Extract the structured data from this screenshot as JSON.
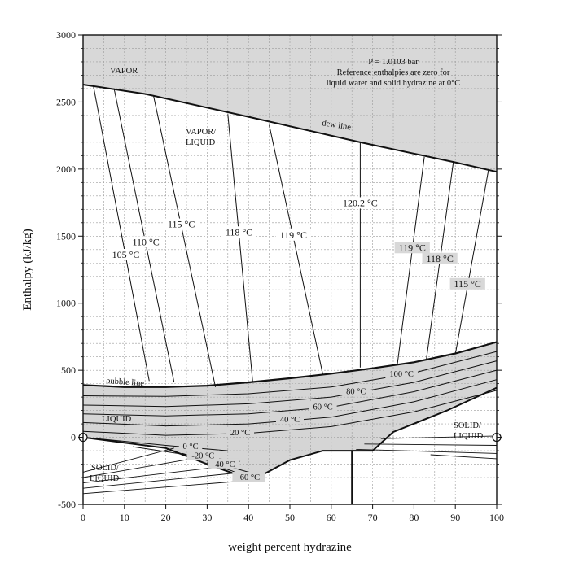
{
  "chart_data": {
    "type": "line",
    "title": "",
    "xlabel": "weight percent hydrazine",
    "ylabel": "Enthalpy (kJ/kg)",
    "xlim": [
      0,
      100
    ],
    "ylim": [
      -500,
      3000
    ],
    "x_ticks": [
      0,
      10,
      20,
      30,
      40,
      50,
      60,
      70,
      80,
      90,
      100
    ],
    "y_ticks": [
      -500,
      0,
      500,
      1000,
      1500,
      2000,
      2500,
      3000
    ],
    "x_tick_labels": [
      "0",
      "10",
      "20",
      "30",
      "40",
      "50",
      "60",
      "70",
      "80",
      "90",
      "100"
    ],
    "y_tick_labels": [
      "-500",
      "0",
      "500",
      "1000",
      "1500",
      "2000",
      "2500",
      "3000"
    ],
    "grid": true,
    "annotations": {
      "pressure": "P = 1.0103 bar",
      "reference_1": "Reference enthalpies are zero for",
      "reference_2": "liquid water and solid hydrazine at 0°C",
      "vapor": "VAPOR",
      "vapor_liquid_1": "VAPOR/",
      "vapor_liquid_2": "LIQUID",
      "dew_line": "dew line",
      "bubble_line": "bubble line",
      "liquid": "LIQUID",
      "solid_liquid_left_1": "SOLID/",
      "solid_liquid_left_2": "LIQUID",
      "solid_liquid_right_1": "SOLID/",
      "solid_liquid_right_2": "LIQUID"
    },
    "dew_line": {
      "x": [
        0,
        15,
        40,
        67,
        90,
        100
      ],
      "y": [
        2630,
        2560,
        2390,
        2200,
        2050,
        1980
      ]
    },
    "bubble_line": {
      "x": [
        0,
        10,
        20,
        30,
        40,
        50,
        60,
        70,
        80,
        90,
        100
      ],
      "y": [
        390,
        375,
        375,
        385,
        410,
        440,
        475,
        515,
        560,
        625,
        710
      ]
    },
    "solid_liquid_boundary_left": {
      "x": [
        0,
        10,
        20,
        30,
        41
      ],
      "y": [
        0,
        -40,
        -80,
        -200,
        -320
      ]
    },
    "solid_liquid_boundary_right": {
      "x": [
        41,
        50,
        58,
        70,
        75,
        88,
        100
      ],
      "y": [
        -320,
        -170,
        -100,
        -100,
        40,
        200,
        370
      ]
    },
    "eutectic_vertical": {
      "x": [
        65,
        65
      ],
      "y": [
        -100,
        -500
      ]
    },
    "tie_lines": [
      {
        "label": "105 °C",
        "x": [
          2.5,
          16
        ],
        "y": [
          2620,
          420
        ]
      },
      {
        "label": "110 °C",
        "x": [
          7.5,
          22
        ],
        "y": [
          2600,
          410
        ]
      },
      {
        "label": "115 °C",
        "x": [
          17,
          32
        ],
        "y": [
          2550,
          375
        ]
      },
      {
        "label": "118 °C",
        "x": [
          35,
          41
        ],
        "y": [
          2410,
          415
        ]
      },
      {
        "label": "119 °C",
        "x": [
          45,
          58
        ],
        "y": [
          2330,
          465
        ]
      },
      {
        "label": "120.2 °C",
        "x": [
          67,
          67
        ],
        "y": [
          2200,
          520
        ]
      },
      {
        "label": "119 °C",
        "x": [
          82.5,
          76
        ],
        "y": [
          2090,
          550
        ]
      },
      {
        "label": "118 °C",
        "x": [
          89.5,
          83
        ],
        "y": [
          2050,
          580
        ]
      },
      {
        "label": "115 °C",
        "x": [
          98,
          90
        ],
        "y": [
          1990,
          620
        ]
      }
    ],
    "liquid_isotherms": [
      {
        "label": "100 °C",
        "x": [
          0,
          20,
          40,
          60,
          80,
          100
        ],
        "y": [
          310,
          305,
          325,
          375,
          480,
          640
        ]
      },
      {
        "label": "80 °C",
        "x": [
          0,
          20,
          40,
          60,
          80,
          100
        ],
        "y": [
          240,
          230,
          250,
          300,
          410,
          570
        ]
      },
      {
        "label": "60 °C",
        "x": [
          0,
          20,
          40,
          60,
          80,
          100
        ],
        "y": [
          175,
          160,
          175,
          225,
          340,
          500
        ]
      },
      {
        "label": "40 °C",
        "x": [
          0,
          20,
          40,
          60,
          80,
          100
        ],
        "y": [
          110,
          85,
          100,
          150,
          265,
          430
        ]
      },
      {
        "label": "20 °C",
        "x": [
          0,
          20,
          40,
          60,
          80,
          100
        ],
        "y": [
          45,
          15,
          30,
          80,
          190,
          350
        ]
      },
      {
        "label": "0 °C",
        "x": [
          0,
          20,
          35
        ],
        "y": [
          0,
          -60,
          -100
        ]
      },
      {
        "label": "-20 °C",
        "x": [
          12,
          25,
          38
        ],
        "y": [
          -70,
          -130,
          -180
        ]
      },
      {
        "label": "-40 °C",
        "x": [
          24,
          32,
          40
        ],
        "y": [
          -120,
          -190,
          -260
        ]
      },
      {
        "label": "-60 °C",
        "x": [
          30,
          36,
          41
        ],
        "y": [
          -190,
          -250,
          -320
        ]
      }
    ],
    "solid_liquid_fan_left": [
      {
        "x": [
          0,
          22
        ],
        "y": [
          -260,
          -80
        ]
      },
      {
        "x": [
          0,
          30
        ],
        "y": [
          -300,
          -140
        ]
      },
      {
        "x": [
          0,
          36
        ],
        "y": [
          -340,
          -210
        ]
      },
      {
        "x": [
          0,
          39
        ],
        "y": [
          -380,
          -260
        ]
      },
      {
        "x": [
          0,
          41
        ],
        "y": [
          -420,
          -320
        ]
      }
    ],
    "solid_liquid_fan_right": [
      {
        "x": [
          72,
          100
        ],
        "y": [
          -10,
          10
        ]
      },
      {
        "x": [
          68,
          100
        ],
        "y": [
          -50,
          -60
        ]
      },
      {
        "x": [
          66,
          100
        ],
        "y": [
          -90,
          -120
        ]
      },
      {
        "x": [
          84,
          100
        ],
        "y": [
          -130,
          -160
        ]
      }
    ],
    "colors": {
      "vapor_fill": "#d8d8d8",
      "liquid_fill": "#d5d5d5",
      "line": "#111111",
      "grid": "#9a9a9a"
    }
  }
}
